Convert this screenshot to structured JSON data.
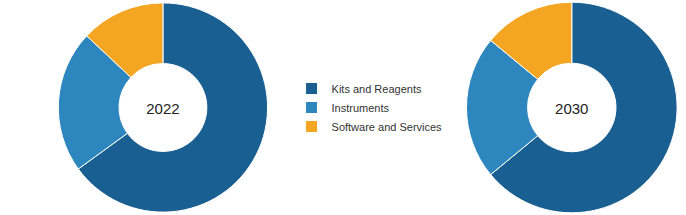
{
  "chart_data": [
    {
      "type": "pie",
      "title": "2022",
      "categories": [
        "Kits and Reagents",
        "Instruments",
        "Software and Services"
      ],
      "values": [
        65,
        22,
        13
      ],
      "colors": [
        "#1a5f91",
        "#2e86bf",
        "#f4a521"
      ],
      "legend": "center"
    },
    {
      "type": "pie",
      "title": "2030",
      "categories": [
        "Kits and Reagents",
        "Instruments",
        "Software and Services"
      ],
      "values": [
        64,
        22,
        14
      ],
      "colors": [
        "#1a5f91",
        "#2e86bf",
        "#f4a521"
      ],
      "legend": "center"
    }
  ]
}
